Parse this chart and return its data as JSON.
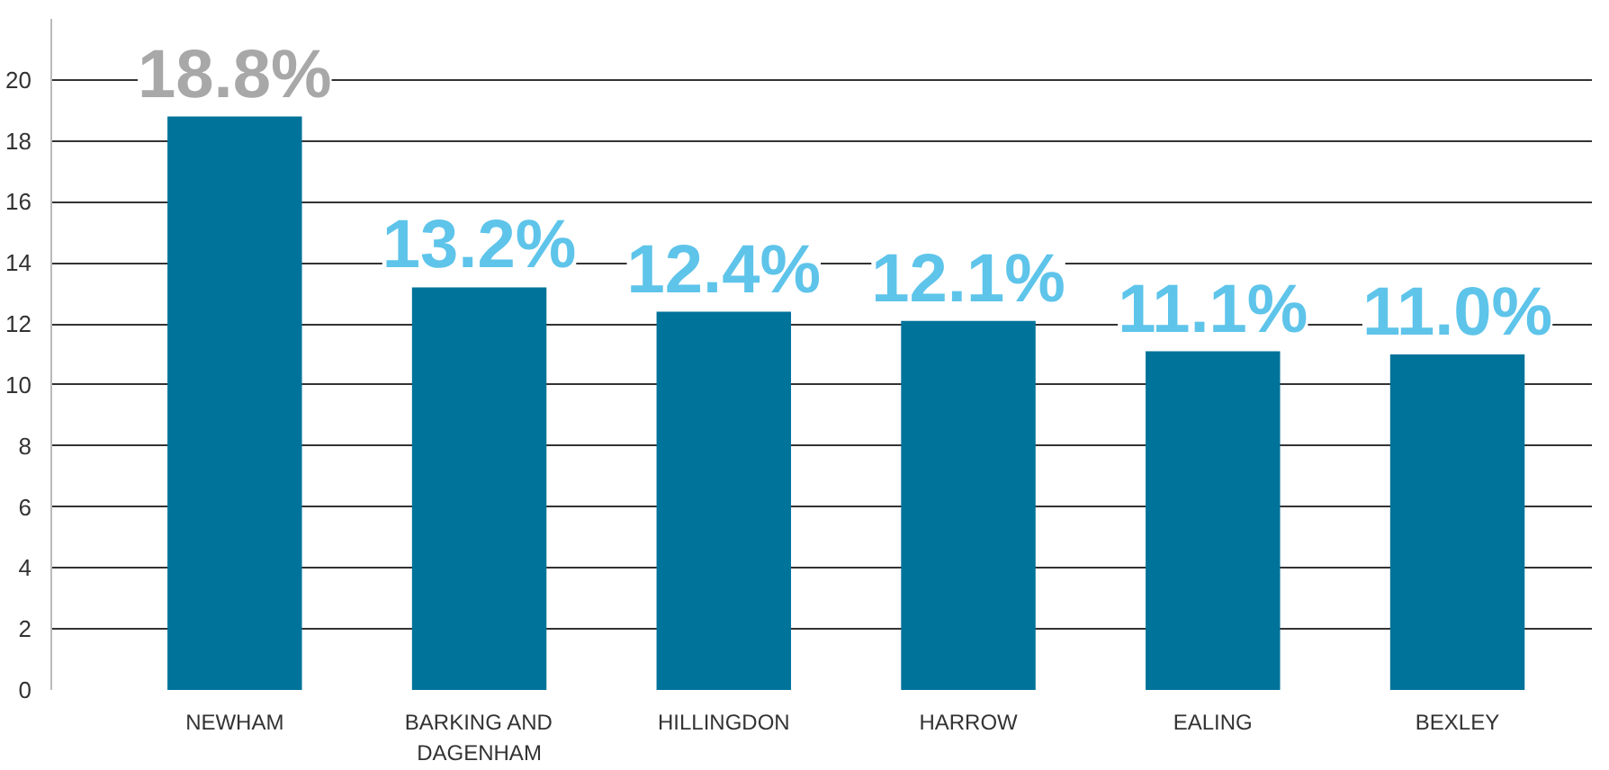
{
  "chart_data": {
    "type": "bar",
    "categories": [
      "NEWHAM",
      "BARKING AND DAGENHAM",
      "HILLINGDON",
      "HARROW",
      "EALING",
      "BEXLEY"
    ],
    "values": [
      18.8,
      13.2,
      12.4,
      12.1,
      11.1,
      11.0
    ],
    "color": "#00739a",
    "value_labels": [
      "18.8%",
      "13.2%",
      "12.4%",
      "12.1%",
      "11.1%",
      "11.0%"
    ],
    "ylim": [
      0,
      22
    ],
    "yticks": [
      0,
      2,
      4,
      6,
      8,
      10,
      12,
      14,
      16,
      18,
      20
    ],
    "grid": "y"
  }
}
